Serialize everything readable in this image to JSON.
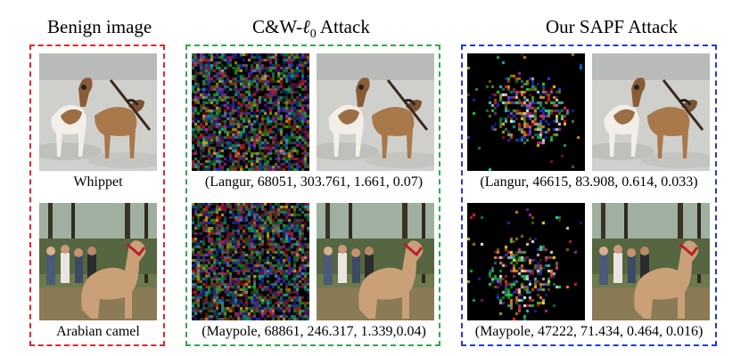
{
  "columns": {
    "benign": {
      "title": "Benign image",
      "border_color": "#e8232a",
      "captions": [
        "Whippet",
        "Arabian camel"
      ]
    },
    "cw": {
      "title_prefix": "C&W-",
      "title_symbol": "ℓ",
      "title_subscript": "0",
      "title_suffix": " Attack",
      "border_color": "#2fa84f",
      "captions": [
        "(Langur, 68051, 303.761, 1.661, 0.07)",
        "(Maypole, 68861, 246.317, 1.339,0.04)"
      ]
    },
    "sapf": {
      "title": "Our SAPF Attack",
      "border_color": "#1f3bd4",
      "captions": [
        "(Langur, 46615, 83.908, 0.614, 0.033)",
        "(Maypole, 47222, 71.434, 0.464, 0.016)"
      ]
    }
  },
  "images": {
    "whippet": "photo of two whippet dogs on sand",
    "camel": "photo of a camel with people in a forest",
    "cw_perturbation": "dense colorful noise perturbation",
    "sapf_perturbation": "sparse colorful noise perturbation on black"
  }
}
